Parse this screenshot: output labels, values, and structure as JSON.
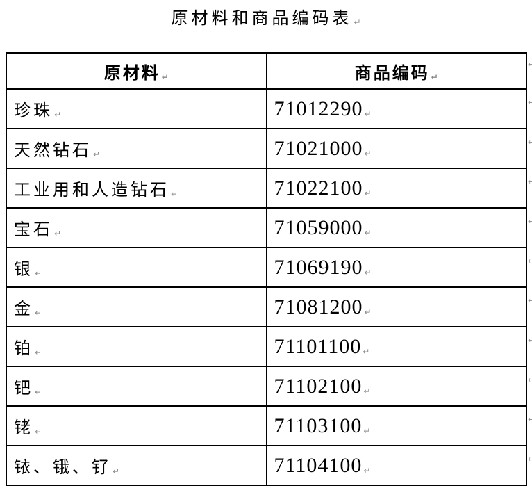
{
  "title": "原材料和商品编码表",
  "marks": {
    "paragraph_end": "↵",
    "row_end": "↵"
  },
  "table": {
    "headers": [
      "原材料",
      "商品编码"
    ],
    "rows": [
      {
        "material": "珍珠",
        "code": "71012290"
      },
      {
        "material": "天然钻石",
        "code": "71021000"
      },
      {
        "material": "工业用和人造钻石",
        "code": "71022100"
      },
      {
        "material": "宝石",
        "code": "71059000"
      },
      {
        "material": "银",
        "code": "71069190"
      },
      {
        "material": "金",
        "code": "71081200"
      },
      {
        "material": "铂",
        "code": "71101100"
      },
      {
        "material": "钯",
        "code": "71102100"
      },
      {
        "material": "铑",
        "code": "71103100"
      },
      {
        "material": "铱、锇、钌",
        "code": "71104100"
      }
    ]
  }
}
